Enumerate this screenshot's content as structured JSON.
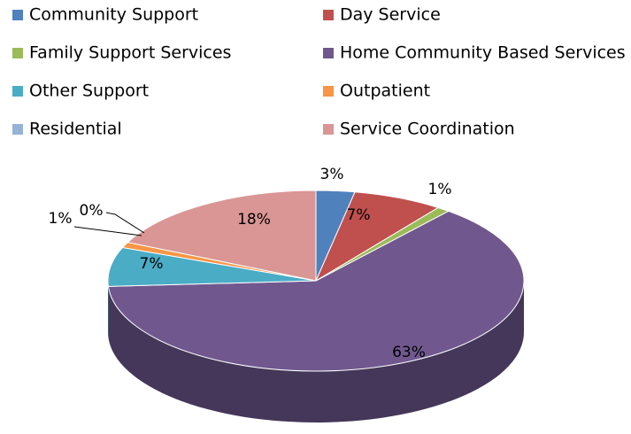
{
  "chart_data": {
    "type": "pie",
    "categories": [
      "Community Support",
      "Day Service",
      "Family Support Services",
      "Home Community Based Services",
      "Other Support",
      "Outpatient",
      "Residential",
      "Service Coordination"
    ],
    "values": [
      3,
      7,
      1,
      63,
      7,
      1,
      0,
      18
    ],
    "value_labels": [
      "3%",
      "7%",
      "1%",
      "63%",
      "7%",
      "1%",
      "0%",
      "18%"
    ],
    "colors": [
      "#4f81bd",
      "#c0504d",
      "#9bbb59",
      "#70588f",
      "#4bacc6",
      "#f79646",
      "#95b3d7",
      "#d99694"
    ],
    "legend": "top"
  }
}
